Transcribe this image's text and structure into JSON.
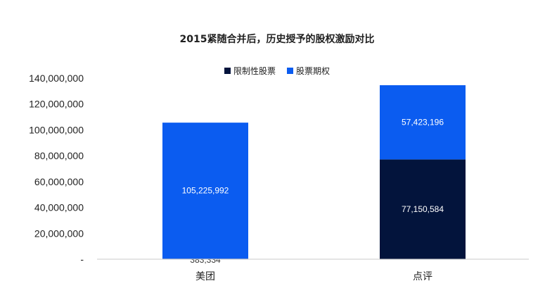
{
  "chart_data": {
    "type": "bar",
    "stacked": true,
    "title": "2015紧随合并后，历史授予的股权激励对比",
    "categories": [
      "美团",
      "点评"
    ],
    "series": [
      {
        "name": "限制性股票",
        "color": "#03143c",
        "values": [
          383334,
          77150584
        ],
        "labels": [
          "383,334",
          "77,150,584"
        ]
      },
      {
        "name": "股票期权",
        "color": "#0b5cf0",
        "values": [
          105225992,
          57423196
        ],
        "labels": [
          "105,225,992",
          "57,423,196"
        ]
      }
    ],
    "ylim": [
      0,
      140000000
    ],
    "y_ticks": [
      {
        "value": 0,
        "label": "-"
      },
      {
        "value": 20000000,
        "label": "20,000,000"
      },
      {
        "value": 40000000,
        "label": "40,000,000"
      },
      {
        "value": 60000000,
        "label": "60,000,000"
      },
      {
        "value": 80000000,
        "label": "80,000,000"
      },
      {
        "value": 100000000,
        "label": "100,000,000"
      },
      {
        "value": 120000000,
        "label": "120,000,000"
      },
      {
        "value": 140000000,
        "label": "140,000,000"
      }
    ],
    "legend_position": "top-center",
    "grid": false
  }
}
